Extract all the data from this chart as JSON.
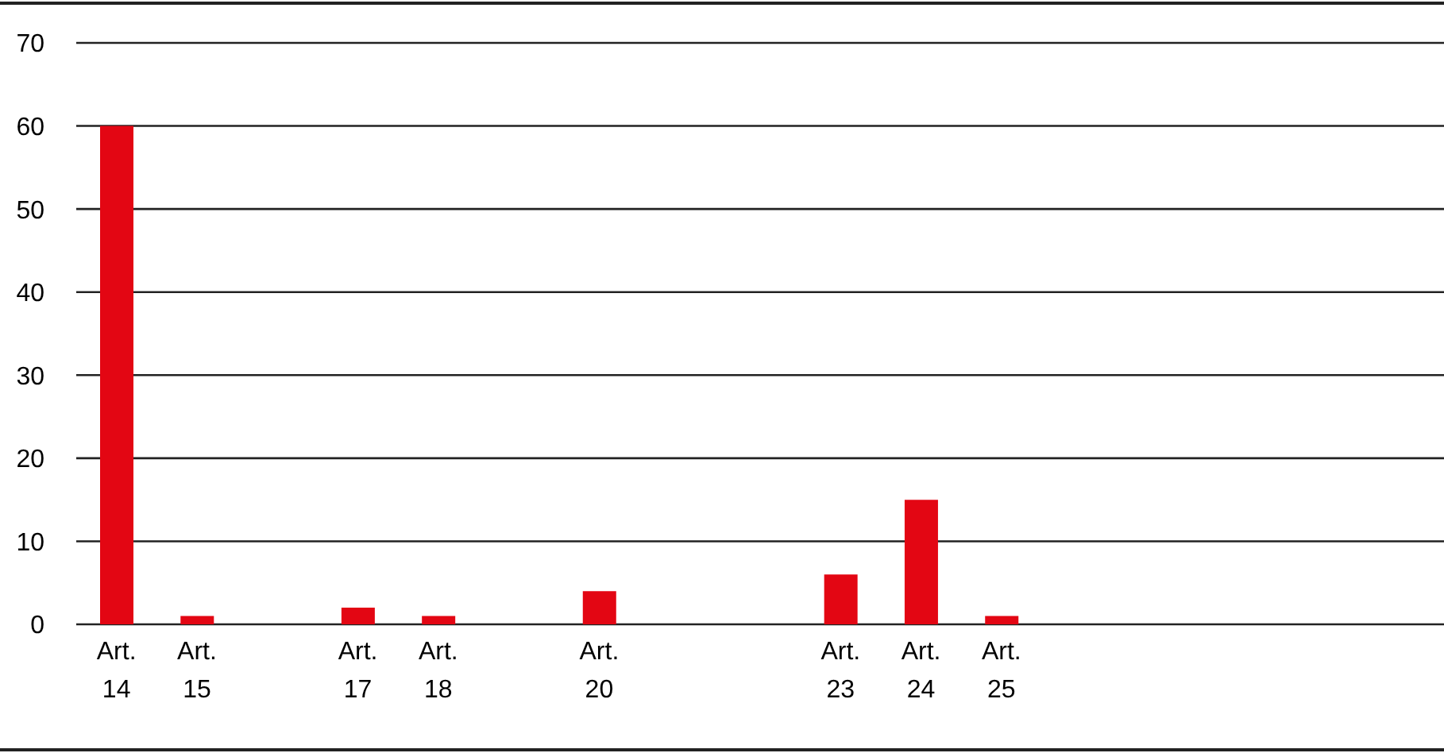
{
  "chart_data": {
    "type": "bar",
    "categories": [
      "Art. 14",
      "Art. 15",
      null,
      "Art. 17",
      "Art. 18",
      null,
      "Art. 20",
      null,
      null,
      "Art. 23",
      "Art. 24",
      "Art. 25",
      null,
      null,
      null,
      null,
      null
    ],
    "values": [
      60,
      1,
      null,
      2,
      1,
      null,
      4,
      null,
      null,
      6,
      15,
      1,
      null,
      null,
      null,
      null,
      null
    ],
    "color": "#e30613",
    "ylim": [
      0,
      70
    ],
    "yticks": [
      0,
      10,
      20,
      30,
      40,
      50,
      60,
      70
    ],
    "grid": "y"
  }
}
